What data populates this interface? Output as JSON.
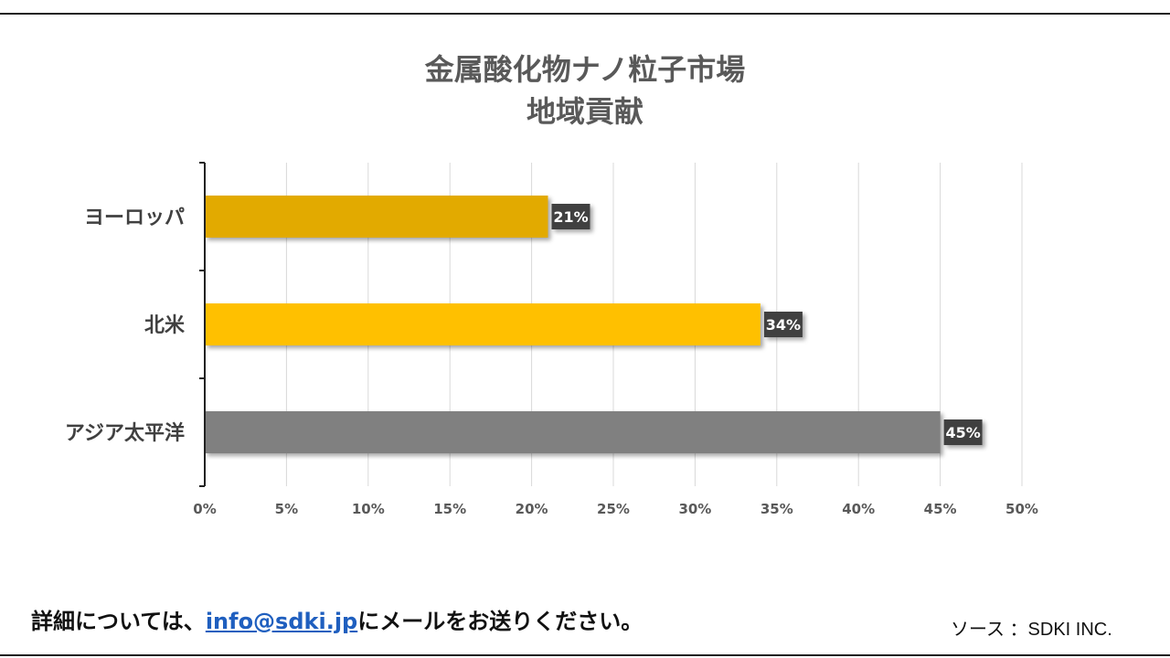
{
  "chart_data": {
    "type": "bar",
    "orientation": "horizontal",
    "title": "金属酸化物ナノ粒子市場",
    "subtitle": "地域貢献",
    "categories": [
      "ヨーロッパ",
      "北米",
      "アジア太平洋"
    ],
    "values": [
      21,
      34,
      45
    ],
    "value_labels": [
      "21%",
      "34%",
      "45%"
    ],
    "bar_colors": [
      "#e2aa00",
      "#ffc000",
      "#808080"
    ],
    "xlim": [
      0,
      50
    ],
    "x_ticks": [
      "0%",
      "5%",
      "10%",
      "15%",
      "20%",
      "25%",
      "30%",
      "35%",
      "40%",
      "45%",
      "50%"
    ],
    "grid": "vertical",
    "legend": "none"
  },
  "footer": {
    "contact_prefix": "詳細については、",
    "contact_email": "info@sdki.jp",
    "contact_suffix": "にメールをお送りください。",
    "source": "ソース ：SDKI INC."
  }
}
